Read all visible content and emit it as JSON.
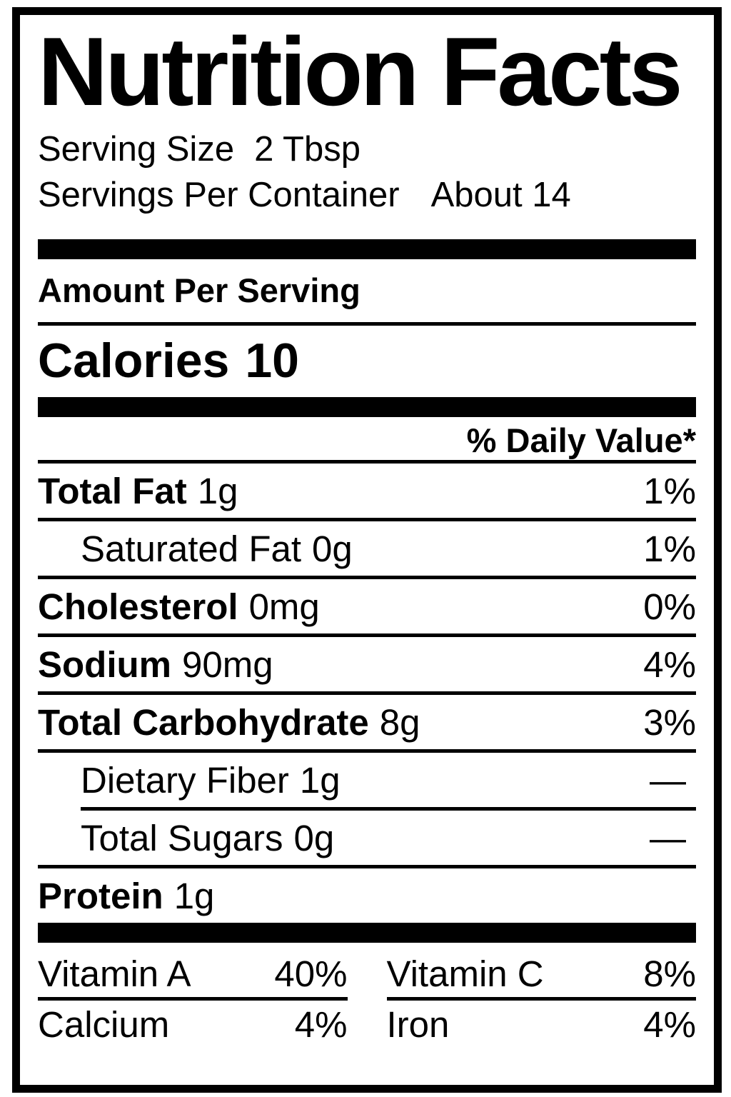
{
  "title": "Nutrition Facts",
  "serving": {
    "size_label": "Serving Size",
    "size_value": "2 Tbsp",
    "per_container_label": "Servings Per Container",
    "per_container_value": "About 14"
  },
  "amount_per_serving": "Amount Per Serving",
  "calories": {
    "label": "Calories",
    "value": "10"
  },
  "daily_value_header": "% Daily Value*",
  "nutrients": [
    {
      "name": "Total Fat",
      "amount": "1g",
      "dv": "1%"
    },
    {
      "name": "Saturated Fat",
      "amount": "0g",
      "dv": "1%"
    },
    {
      "name": "Cholesterol",
      "amount": "0mg",
      "dv": "0%"
    },
    {
      "name": "Sodium",
      "amount": "90mg",
      "dv": "4%"
    },
    {
      "name": "Total Carbohydrate",
      "amount": "8g",
      "dv": "3%"
    },
    {
      "name": "Dietary Fiber",
      "amount": "1g",
      "dv": "—"
    },
    {
      "name": "Total Sugars",
      "amount": "0g",
      "dv": "—"
    },
    {
      "name": "Protein",
      "amount": "1g",
      "dv": ""
    }
  ],
  "micronutrients": [
    {
      "name": "Vitamin A",
      "dv": "40%"
    },
    {
      "name": "Vitamin C",
      "dv": "8%"
    },
    {
      "name": "Calcium",
      "dv": "4%"
    },
    {
      "name": "Iron",
      "dv": "4%"
    }
  ],
  "colors": {
    "ink": "#000000",
    "paper": "#ffffff"
  }
}
